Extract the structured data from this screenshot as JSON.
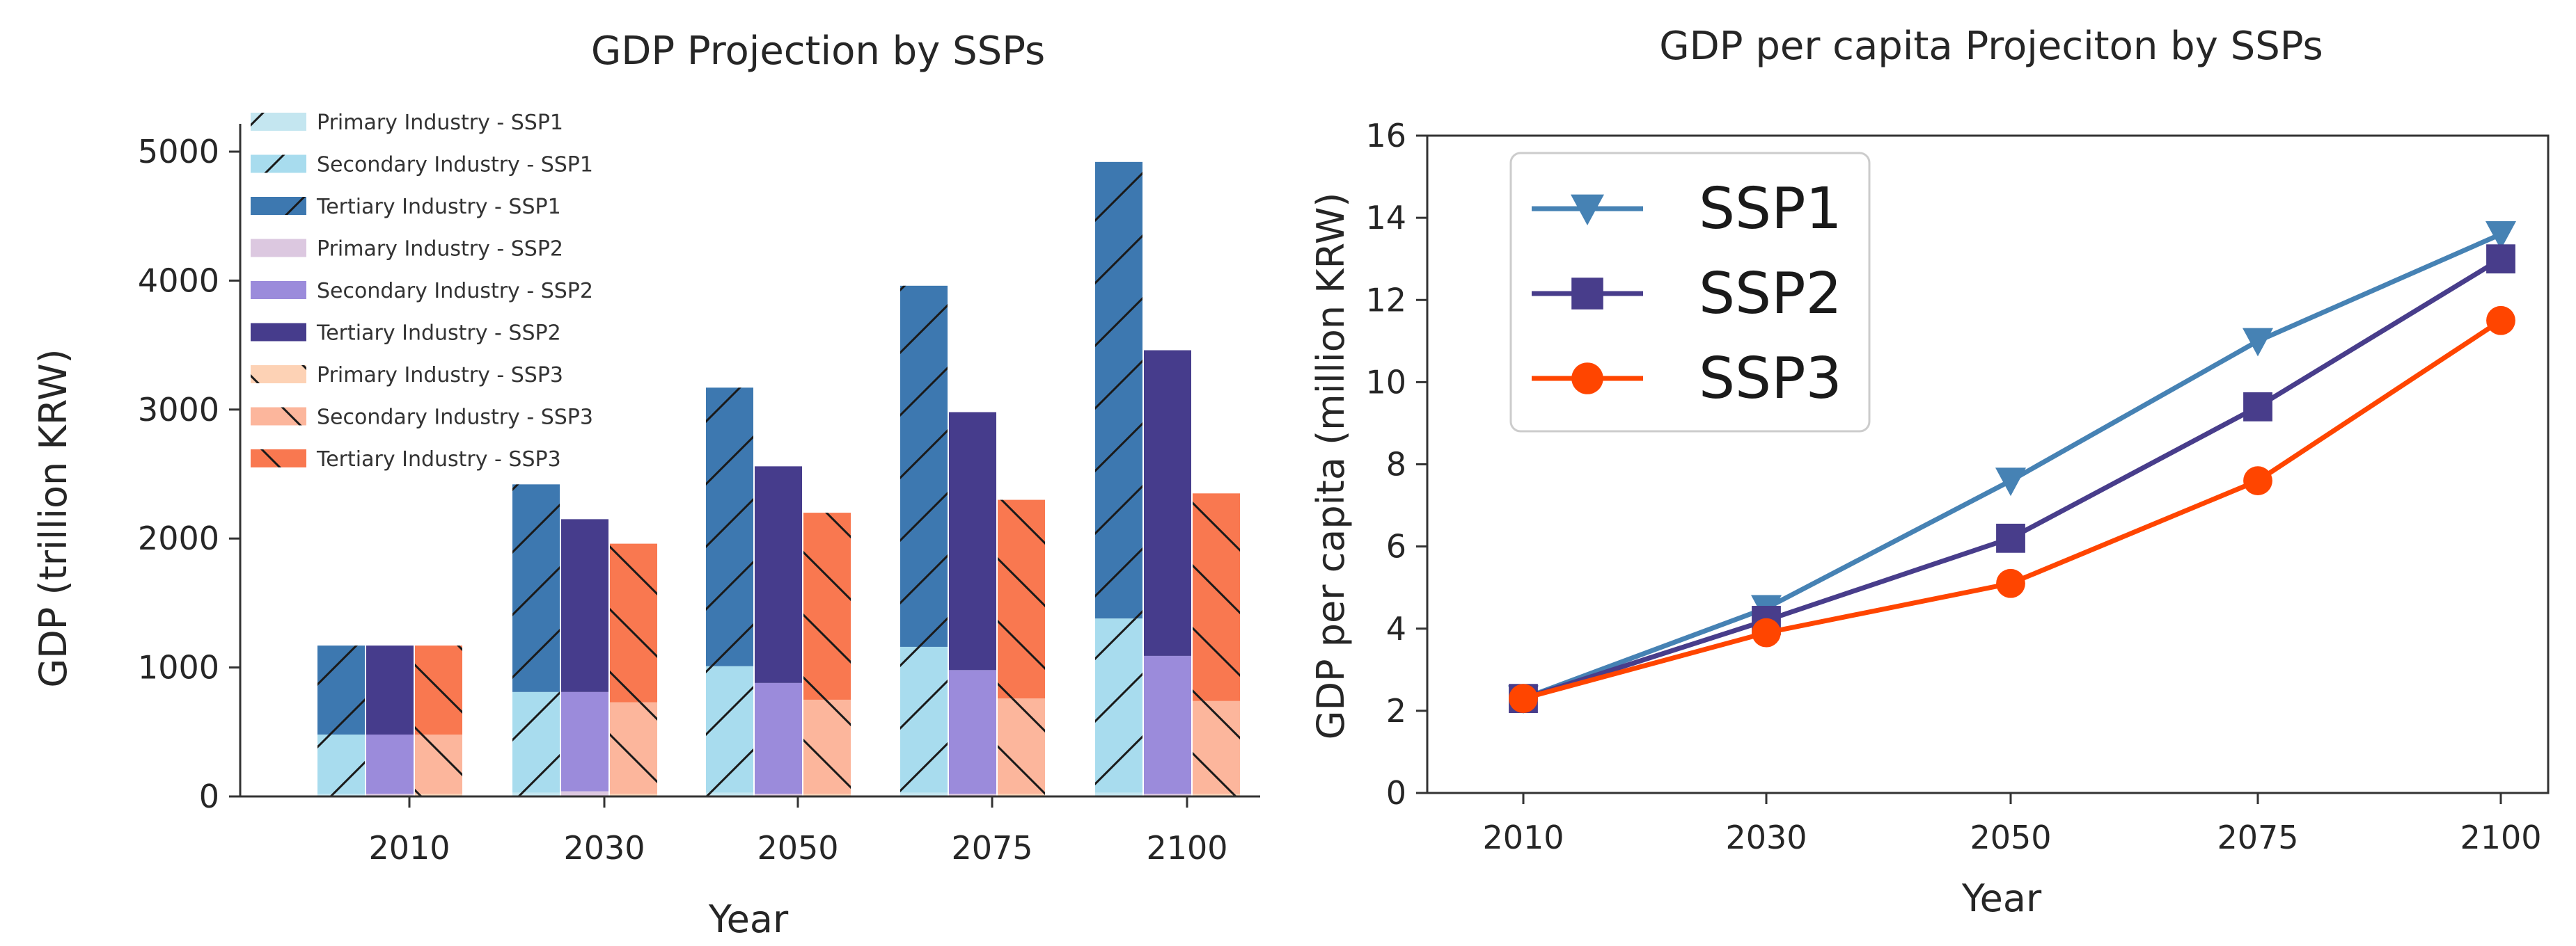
{
  "chart_data": [
    {
      "type": "bar",
      "stacked": true,
      "title": "GDP Projection by SSPs",
      "xlabel": "Year",
      "ylabel": "GDP (trillion KRW)",
      "categories": [
        "2010",
        "2030",
        "2050",
        "2075",
        "2100"
      ],
      "ylim": [
        0,
        5200
      ],
      "yticks": [
        0,
        1000,
        2000,
        3000,
        4000,
        5000
      ],
      "scenarios": [
        {
          "name": "SSP1",
          "hatch": "forward",
          "components": [
            {
              "name": "Primary Industry - SSP1",
              "color": "#c4e6f0",
              "values": [
                20,
                30,
                30,
                30,
                30
              ]
            },
            {
              "name": "Secondary Industry - SSP1",
              "color": "#a8dcee",
              "values": [
                460,
                780,
                980,
                1130,
                1350
              ]
            },
            {
              "name": "Tertiary Industry - SSP1",
              "color": "#3d78b0",
              "values": [
                690,
                1610,
                2160,
                2800,
                3540
              ]
            }
          ]
        },
        {
          "name": "SSP2",
          "hatch": "none",
          "components": [
            {
              "name": "Primary Industry - SSP2",
              "color": "#dcc8e0",
              "values": [
                20,
                40,
                20,
                20,
                20
              ]
            },
            {
              "name": "Secondary Industry - SSP2",
              "color": "#9b8bdb",
              "values": [
                460,
                770,
                860,
                960,
                1070
              ]
            },
            {
              "name": "Tertiary Industry - SSP2",
              "color": "#463c8c",
              "values": [
                690,
                1340,
                1680,
                2000,
                2370
              ]
            }
          ]
        },
        {
          "name": "SSP3",
          "hatch": "backward",
          "components": [
            {
              "name": "Primary Industry - SSP3",
              "color": "#fdd2b5",
              "values": [
                20,
                20,
                20,
                20,
                20
              ]
            },
            {
              "name": "Secondary Industry - SSP3",
              "color": "#fcb69c",
              "values": [
                460,
                710,
                730,
                740,
                720
              ]
            },
            {
              "name": "Tertiary Industry - SSP3",
              "color": "#f97850",
              "values": [
                690,
                1230,
                1450,
                1540,
                1610
              ]
            }
          ]
        }
      ],
      "legend_position": "top-left",
      "legend_entries": [
        "Primary Industry - SSP1",
        "Secondary Industry - SSP1",
        "Tertiary Industry - SSP1",
        "Primary Industry - SSP2",
        "Secondary Industry - SSP2",
        "Tertiary Industry - SSP2",
        "Primary Industry - SSP3",
        "Secondary Industry - SSP3",
        "Tertiary Industry - SSP3"
      ]
    },
    {
      "type": "line",
      "title": "GDP per capita Projeciton by SSPs",
      "xlabel": "Year",
      "ylabel": "GDP per capita (million KRW)",
      "x": [
        "2010",
        "2030",
        "2050",
        "2075",
        "2100"
      ],
      "ylim": [
        0,
        16
      ],
      "yticks": [
        0,
        2,
        4,
        6,
        8,
        10,
        12,
        14,
        16
      ],
      "legend_position": "top-left",
      "series": [
        {
          "name": "SSP1",
          "color": "#4682b4",
          "marker": "triangle-down",
          "values": [
            2.3,
            4.5,
            7.6,
            11.0,
            13.6
          ]
        },
        {
          "name": "SSP2",
          "color": "#483d8b",
          "marker": "square",
          "values": [
            2.3,
            4.2,
            6.2,
            9.4,
            13.0
          ]
        },
        {
          "name": "SSP3",
          "color": "#ff4500",
          "marker": "circle",
          "values": [
            2.3,
            3.9,
            5.1,
            7.6,
            11.5
          ]
        }
      ]
    }
  ]
}
